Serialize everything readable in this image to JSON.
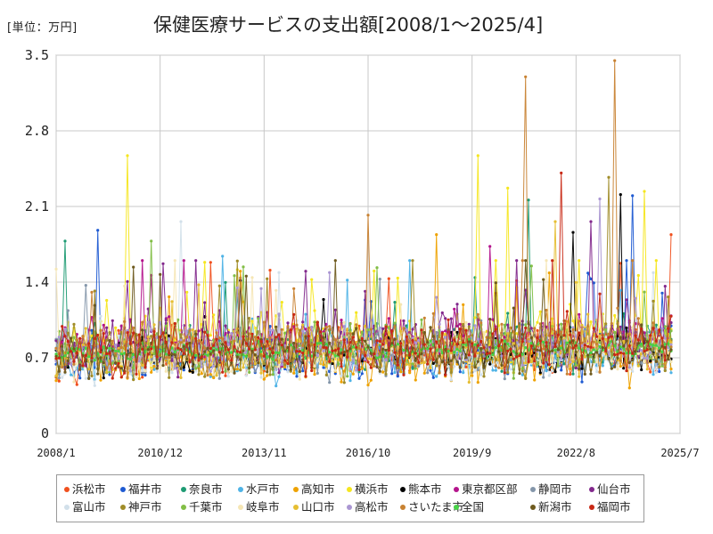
{
  "unit_label": "[単位：万円]",
  "chart_data": {
    "type": "line",
    "title": "保健医療サービスの支出額[2008/1～2025/4]",
    "xlabel": "",
    "ylabel": "",
    "x_start": "2008-01",
    "x_end": "2025-04",
    "xlim": [
      "2008-01",
      "2025-07"
    ],
    "ylim": [
      0,
      3.5
    ],
    "y_ticks": [
      "0",
      "0.7",
      "1.4",
      "2.1",
      "2.8",
      "3.5"
    ],
    "y_tick_values": [
      0,
      0.7,
      1.4,
      2.1,
      2.8,
      3.5
    ],
    "x_ticks": [
      "2008/1",
      "2010/12",
      "2013/11",
      "2016/10",
      "2019/9",
      "2022/8",
      "2025/7"
    ],
    "x_tick_dates": [
      "2008-01",
      "2010-12",
      "2013-11",
      "2016-10",
      "2019-09",
      "2022-08",
      "2025-07"
    ],
    "grid": true,
    "legend_position": "bottom",
    "series": [
      {
        "name": "浜松市",
        "color": "#f0501e",
        "base": 0.72,
        "amp": 0.3,
        "peaks": [
          [
            "2025-04",
            1.84
          ]
        ]
      },
      {
        "name": "福井市",
        "color": "#1e5ad2",
        "base": 0.68,
        "amp": 0.28,
        "peaks": [
          [
            "2009-03",
            1.88
          ],
          [
            "2024-03",
            2.2
          ]
        ]
      },
      {
        "name": "奈良市",
        "color": "#1e9b73",
        "base": 0.78,
        "amp": 0.3,
        "peaks": [
          [
            "2008-04",
            1.78
          ],
          [
            "2021-04",
            2.16
          ]
        ]
      },
      {
        "name": "水戸市",
        "color": "#4fb3e6",
        "base": 0.64,
        "amp": 0.26,
        "peaks": [
          [
            "2012-09",
            1.64
          ]
        ]
      },
      {
        "name": "高知市",
        "color": "#eea200",
        "base": 0.66,
        "amp": 0.28,
        "peaks": [
          [
            "2018-09",
            1.84
          ]
        ]
      },
      {
        "name": "横浜市",
        "color": "#f5e61e",
        "base": 0.85,
        "amp": 0.32,
        "peaks": [
          [
            "2010-01",
            2.57
          ],
          [
            "2019-11",
            2.57
          ],
          [
            "2020-09",
            2.27
          ],
          [
            "2024-07",
            2.24
          ]
        ]
      },
      {
        "name": "熊本市",
        "color": "#000000",
        "base": 0.7,
        "amp": 0.26,
        "peaks": [
          [
            "2022-07",
            1.86
          ],
          [
            "2023-11",
            2.21
          ]
        ]
      },
      {
        "name": "東京都区部",
        "color": "#b4148c",
        "base": 0.84,
        "amp": 0.28,
        "peaks": [
          [
            "2020-03",
            1.73
          ]
        ]
      },
      {
        "name": "静岡市",
        "color": "#8496aa",
        "base": 0.72,
        "amp": 0.28,
        "peaks": []
      },
      {
        "name": "仙台市",
        "color": "#82288c",
        "base": 0.82,
        "amp": 0.3,
        "peaks": [
          [
            "2023-01",
            1.96
          ]
        ]
      },
      {
        "name": "富山市",
        "color": "#d2e0ea",
        "base": 0.68,
        "amp": 0.26,
        "peaks": [
          [
            "2011-07",
            1.96
          ]
        ]
      },
      {
        "name": "神戸市",
        "color": "#a08c28",
        "base": 0.74,
        "amp": 0.3,
        "peaks": [
          [
            "2023-07",
            2.37
          ]
        ]
      },
      {
        "name": "千葉市",
        "color": "#82be46",
        "base": 0.76,
        "amp": 0.3,
        "peaks": [
          [
            "2010-09",
            1.78
          ]
        ]
      },
      {
        "name": "岐阜市",
        "color": "#f5e6b4",
        "base": 0.72,
        "amp": 0.28,
        "peaks": []
      },
      {
        "name": "山口市",
        "color": "#e6be32",
        "base": 0.74,
        "amp": 0.3,
        "peaks": [
          [
            "2022-01",
            1.96
          ]
        ]
      },
      {
        "name": "高松市",
        "color": "#aa96d2",
        "base": 0.76,
        "amp": 0.28,
        "peaks": [
          [
            "2023-04",
            2.17
          ]
        ]
      },
      {
        "name": "さいたま市",
        "color": "#c88232",
        "base": 0.8,
        "amp": 0.32,
        "peaks": [
          [
            "2016-10",
            2.02
          ],
          [
            "2021-03",
            3.3
          ],
          [
            "2023-09",
            3.45
          ]
        ]
      },
      {
        "name": "全国",
        "color": "#46d246",
        "base": 0.74,
        "amp": 0.08,
        "peaks": []
      },
      {
        "name": "新潟市",
        "color": "#6e5a1e",
        "base": 0.72,
        "amp": 0.28,
        "peaks": []
      },
      {
        "name": "福岡市",
        "color": "#c82814",
        "base": 0.76,
        "amp": 0.3,
        "peaks": [
          [
            "2022-03",
            2.41
          ]
        ]
      }
    ]
  }
}
